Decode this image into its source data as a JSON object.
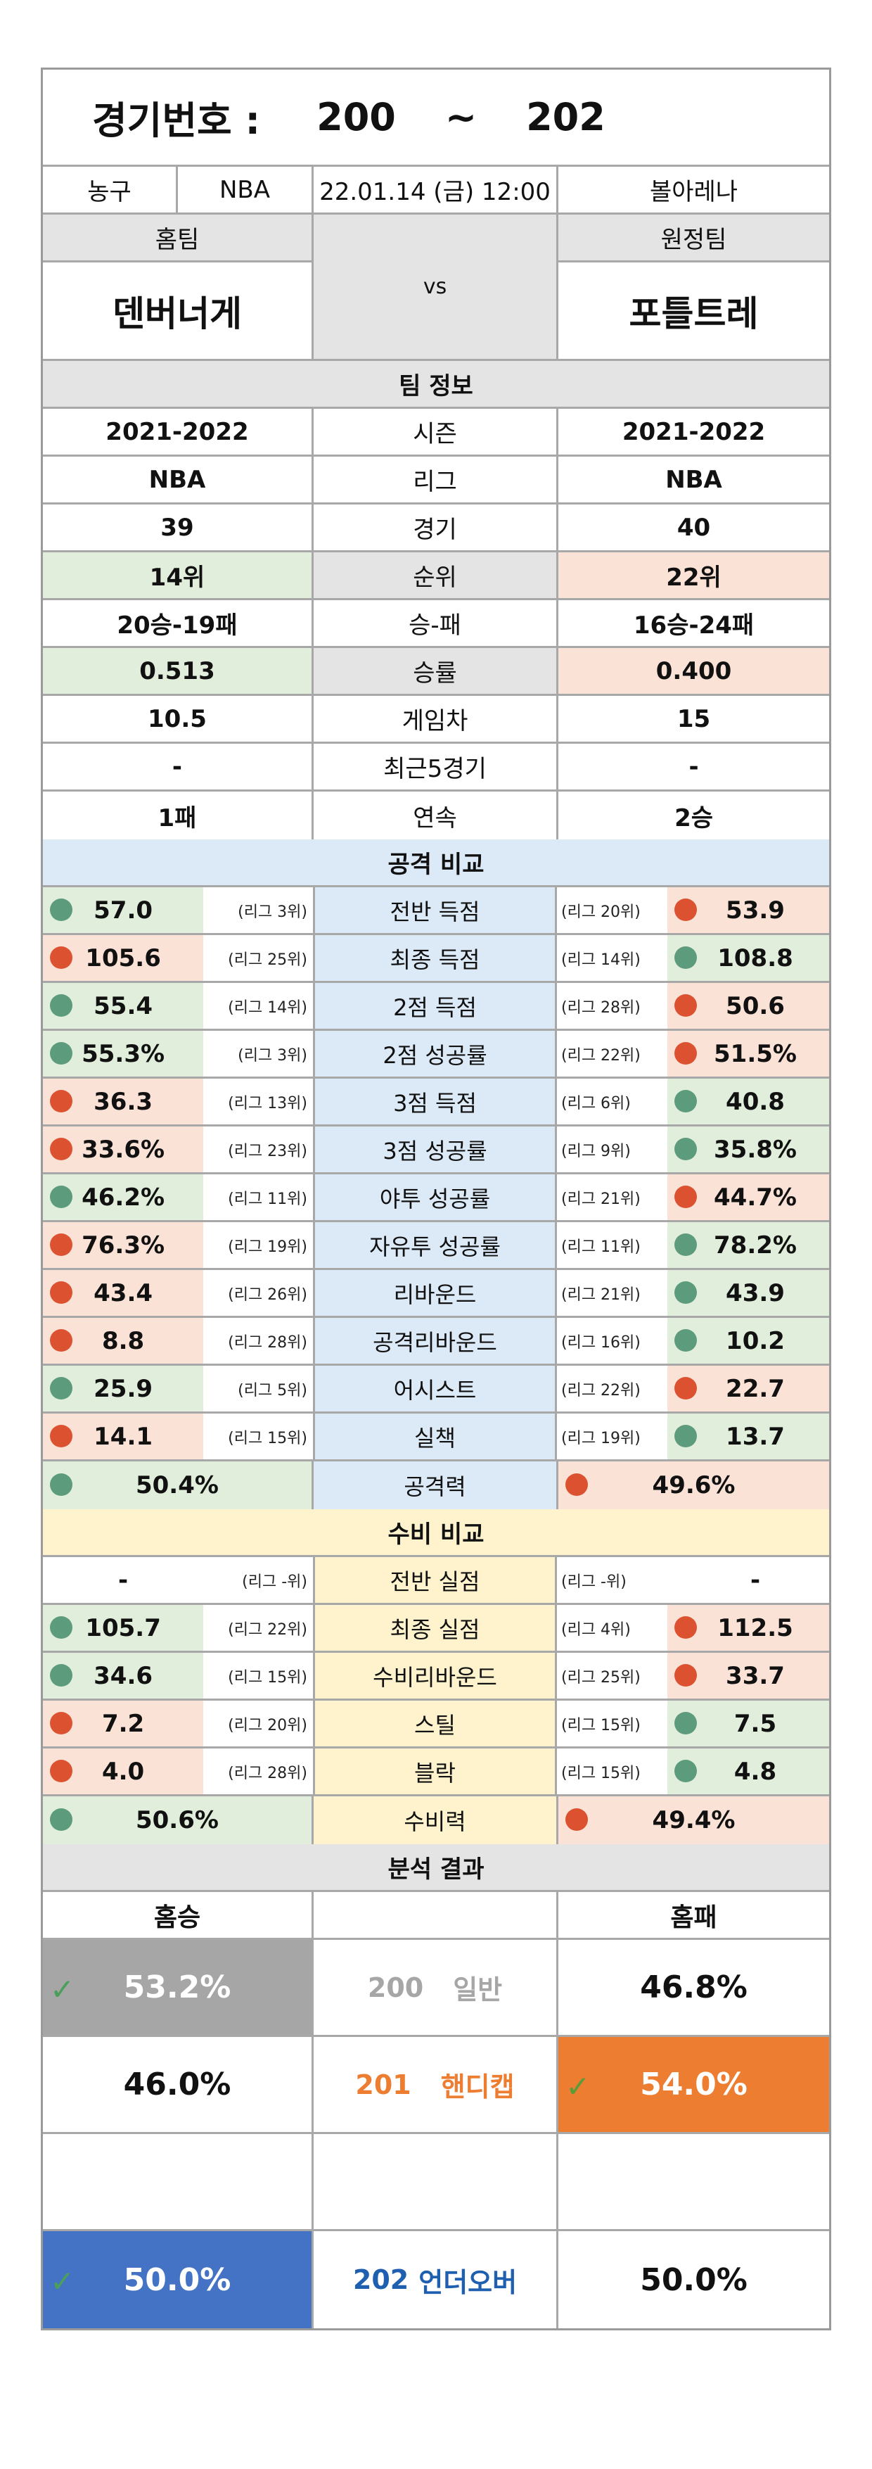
{
  "header": {
    "label": "경기번호 :",
    "from": "200",
    "tilde": "~",
    "to": "202"
  },
  "info": {
    "sport": "농구",
    "league": "NBA",
    "datetime": "22.01.14 (금) 12:00",
    "venue": "볼아레나"
  },
  "teams": {
    "home_label": "홈팀",
    "away_label": "원정팀",
    "home": "덴버너게",
    "vs": "vs",
    "away": "포틀트레"
  },
  "team_info": {
    "title": "팀 정보",
    "rows": [
      {
        "home": "2021-2022",
        "label": "시즌",
        "away": "2021-2022"
      },
      {
        "home": "NBA",
        "label": "리그",
        "away": "NBA"
      },
      {
        "home": "39",
        "label": "경기",
        "away": "40"
      },
      {
        "home": "14위",
        "label": "순위",
        "away": "22위"
      },
      {
        "home": "20승-19패",
        "label": "승-패",
        "away": "16승-24패"
      },
      {
        "home": "0.513",
        "label": "승률",
        "away": "0.400"
      },
      {
        "home": "10.5",
        "label": "게임차",
        "away": "15"
      },
      {
        "home": "-",
        "label": "최근5경기",
        "away": "-"
      },
      {
        "home": "1패",
        "label": "연속",
        "away": "2승"
      }
    ]
  },
  "attack": {
    "title": "공격 비교",
    "rows": [
      {
        "label": "전반 득점",
        "home": "57.0",
        "home_rank": "(리그 3위)",
        "away": "53.9",
        "away_rank": "(리그 20위)"
      },
      {
        "label": "최종 득점",
        "home": "105.6",
        "home_rank": "(리그 25위)",
        "away": "108.8",
        "away_rank": "(리그 14위)"
      },
      {
        "label": "2점 득점",
        "home": "55.4",
        "home_rank": "(리그 14위)",
        "away": "50.6",
        "away_rank": "(리그 28위)"
      },
      {
        "label": "2점 성공률",
        "home": "55.3%",
        "home_rank": "(리그 3위)",
        "away": "51.5%",
        "away_rank": "(리그 22위)"
      },
      {
        "label": "3점 득점",
        "home": "36.3",
        "home_rank": "(리그 13위)",
        "away": "40.8",
        "away_rank": "(리그 6위)"
      },
      {
        "label": "3점 성공률",
        "home": "33.6%",
        "home_rank": "(리그 23위)",
        "away": "35.8%",
        "away_rank": "(리그 9위)"
      },
      {
        "label": "야투 성공률",
        "home": "46.2%",
        "home_rank": "(리그 11위)",
        "away": "44.7%",
        "away_rank": "(리그 21위)"
      },
      {
        "label": "자유투 성공률",
        "home": "76.3%",
        "home_rank": "(리그 19위)",
        "away": "78.2%",
        "away_rank": "(리그 11위)"
      },
      {
        "label": "리바운드",
        "home": "43.4",
        "home_rank": "(리그 26위)",
        "away": "43.9",
        "away_rank": "(리그 21위)"
      },
      {
        "label": "공격리바운드",
        "home": "8.8",
        "home_rank": "(리그 28위)",
        "away": "10.2",
        "away_rank": "(리그 16위)"
      },
      {
        "label": "어시스트",
        "home": "25.9",
        "home_rank": "(리그 5위)",
        "away": "22.7",
        "away_rank": "(리그 22위)"
      },
      {
        "label": "실책",
        "home": "14.1",
        "home_rank": "(리그 15위)",
        "away": "13.7",
        "away_rank": "(리그 19위)"
      }
    ],
    "total": {
      "label": "공격력",
      "home": "50.4%",
      "away": "49.6%"
    }
  },
  "defense": {
    "title": "수비 비교",
    "rows": [
      {
        "label": "전반 실점",
        "home": "-",
        "home_rank": "(리그 -위)",
        "away": "-",
        "away_rank": "(리그 -위)"
      },
      {
        "label": "최종 실점",
        "home": "105.7",
        "home_rank": "(리그 22위)",
        "away": "112.5",
        "away_rank": "(리그 4위)"
      },
      {
        "label": "수비리바운드",
        "home": "34.6",
        "home_rank": "(리그 15위)",
        "away": "33.7",
        "away_rank": "(리그 25위)"
      },
      {
        "label": "스틸",
        "home": "7.2",
        "home_rank": "(리그 20위)",
        "away": "7.5",
        "away_rank": "(리그 15위)"
      },
      {
        "label": "블락",
        "home": "4.0",
        "home_rank": "(리그 28위)",
        "away": "4.8",
        "away_rank": "(리그 15위)"
      }
    ],
    "total": {
      "label": "수비력",
      "home": "50.6%",
      "away": "49.4%"
    }
  },
  "analysis": {
    "title": "분석 결과",
    "home_label": "홈승",
    "away_label": "홈패",
    "rows": [
      {
        "home": "53.2%",
        "num": "200",
        "type": "일반",
        "away": "46.8%"
      },
      {
        "home": "46.0%",
        "num": "201",
        "type": "핸디캡",
        "away": "54.0%"
      },
      {
        "home": "50.0%",
        "num": "202",
        "type": "언더오버",
        "away": "50.0%"
      }
    ]
  },
  "colors": {
    "favor": "#5c9b7c",
    "against": "#dc5230",
    "pick_grey": "#a6a6a6",
    "pick_orange": "#ed7d31",
    "pick_blue": "#4472c4",
    "handicap_text": "#ed7d31",
    "ou_text": "#1f5fb0"
  },
  "icons": {
    "pick": "check-icon"
  }
}
